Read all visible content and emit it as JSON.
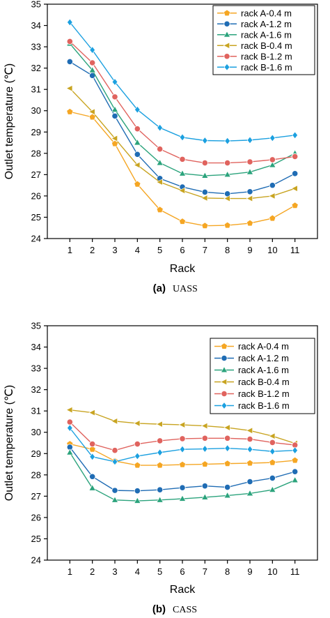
{
  "chart_data": [
    {
      "type": "line",
      "caption_tag": "(a)",
      "caption_name": "UASS",
      "xlabel": "Rack",
      "ylabel": "Outlet temperature (℃)",
      "x": [
        1,
        2,
        3,
        4,
        5,
        6,
        7,
        8,
        9,
        10,
        11
      ],
      "ylim": [
        24,
        35
      ],
      "yticks": [
        24,
        25,
        26,
        27,
        28,
        29,
        30,
        31,
        32,
        33,
        34,
        35
      ],
      "legend_position": "top-right",
      "series": [
        {
          "name": "rack A-0.4 m",
          "color": "#F5A623",
          "marker": "pentagon",
          "values": [
            29.95,
            29.7,
            28.45,
            26.55,
            25.35,
            24.8,
            24.6,
            24.62,
            24.72,
            24.95,
            25.55
          ]
        },
        {
          "name": "rack A-1.2 m",
          "color": "#1F6CB4",
          "marker": "circle",
          "values": [
            32.3,
            31.65,
            29.75,
            27.95,
            26.82,
            26.42,
            26.18,
            26.1,
            26.2,
            26.5,
            27.05
          ]
        },
        {
          "name": "rack A-1.6 m",
          "color": "#2BA37C",
          "marker": "triangle",
          "values": [
            33.15,
            31.9,
            30.05,
            28.5,
            27.55,
            27.05,
            26.95,
            27.0,
            27.12,
            27.45,
            28.0
          ]
        },
        {
          "name": "rack B-0.4 m",
          "color": "#C8A421",
          "marker": "triangle-left",
          "values": [
            31.05,
            29.95,
            28.7,
            27.45,
            26.65,
            26.25,
            25.9,
            25.88,
            25.88,
            26.0,
            26.35
          ]
        },
        {
          "name": "rack B-1.2 m",
          "color": "#E0635E",
          "marker": "circle",
          "values": [
            33.25,
            32.25,
            30.65,
            29.15,
            28.2,
            27.72,
            27.55,
            27.55,
            27.6,
            27.7,
            27.85
          ]
        },
        {
          "name": "rack B-1.6 m",
          "color": "#1BA0E0",
          "marker": "diamond",
          "values": [
            34.15,
            32.85,
            31.35,
            30.05,
            29.2,
            28.75,
            28.6,
            28.58,
            28.62,
            28.72,
            28.85
          ]
        }
      ]
    },
    {
      "type": "line",
      "caption_tag": "(b)",
      "caption_name": "CASS",
      "xlabel": "Rack",
      "ylabel": "Outlet temperature (℃)",
      "x": [
        1,
        2,
        3,
        4,
        5,
        6,
        7,
        8,
        9,
        10,
        11
      ],
      "ylim": [
        24,
        35
      ],
      "yticks": [
        24,
        25,
        26,
        27,
        28,
        29,
        30,
        31,
        32,
        33,
        34,
        35
      ],
      "legend_position": "top-right",
      "series": [
        {
          "name": "rack A-0.4 m",
          "color": "#F5A623",
          "marker": "pentagon",
          "values": [
            29.45,
            29.2,
            28.65,
            28.45,
            28.45,
            28.48,
            28.5,
            28.53,
            28.55,
            28.58,
            28.68
          ]
        },
        {
          "name": "rack A-1.2 m",
          "color": "#1F6CB4",
          "marker": "circle",
          "values": [
            29.3,
            27.92,
            27.27,
            27.25,
            27.3,
            27.4,
            27.48,
            27.42,
            27.68,
            27.85,
            28.15
          ]
        },
        {
          "name": "rack A-1.6 m",
          "color": "#2BA37C",
          "marker": "triangle",
          "values": [
            29.05,
            27.38,
            26.82,
            26.78,
            26.82,
            26.88,
            26.95,
            27.03,
            27.13,
            27.3,
            27.75
          ]
        },
        {
          "name": "rack B-0.4 m",
          "color": "#C8A421",
          "marker": "triangle-left",
          "values": [
            31.05,
            30.92,
            30.52,
            30.42,
            30.38,
            30.35,
            30.3,
            30.22,
            30.08,
            29.82,
            29.48
          ]
        },
        {
          "name": "rack B-1.2 m",
          "color": "#E0635E",
          "marker": "circle",
          "values": [
            30.48,
            29.45,
            29.15,
            29.45,
            29.6,
            29.7,
            29.72,
            29.72,
            29.68,
            29.52,
            29.4
          ]
        },
        {
          "name": "rack B-1.6 m",
          "color": "#1BA0E0",
          "marker": "diamond",
          "values": [
            30.2,
            28.85,
            28.62,
            28.88,
            29.05,
            29.2,
            29.22,
            29.25,
            29.2,
            29.1,
            29.15
          ]
        }
      ]
    }
  ]
}
